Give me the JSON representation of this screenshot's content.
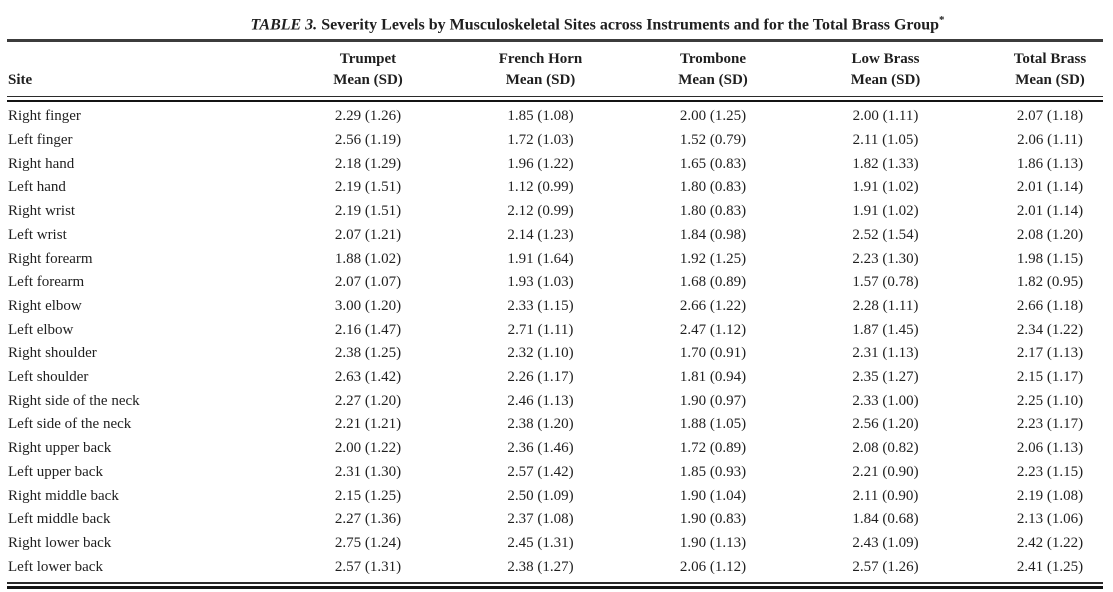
{
  "colors": {
    "text": "#1f1f1f",
    "rule_dark": "#141414",
    "rule_gray": "#3c3c3c",
    "background": "#ffffff"
  },
  "table": {
    "label": "TABLE 3.",
    "caption": " Severity Levels by Musculoskeletal Sites across Instruments and for the Total Brass Group",
    "footnote_marker": "*",
    "site_header": "Site",
    "columns": [
      {
        "instrument": "Trumpet",
        "measure": "Mean (SD)"
      },
      {
        "instrument": "French Horn",
        "measure": "Mean (SD)"
      },
      {
        "instrument": "Trombone",
        "measure": "Mean (SD)"
      },
      {
        "instrument": "Low Brass",
        "measure": "Mean (SD)"
      },
      {
        "instrument": "Total Brass",
        "measure": "Mean (SD)"
      }
    ],
    "rows": [
      {
        "site": "Right finger",
        "values": [
          "2.29 (1.26)",
          "1.85 (1.08)",
          "2.00 (1.25)",
          "2.00 (1.11)",
          "2.07 (1.18)"
        ]
      },
      {
        "site": "Left finger",
        "values": [
          "2.56 (1.19)",
          "1.72 (1.03)",
          "1.52 (0.79)",
          "2.11 (1.05)",
          "2.06 (1.11)"
        ]
      },
      {
        "site": "Right hand",
        "values": [
          "2.18 (1.29)",
          "1.96 (1.22)",
          "1.65 (0.83)",
          "1.82 (1.33)",
          "1.86 (1.13)"
        ]
      },
      {
        "site": "Left hand",
        "values": [
          "2.19 (1.51)",
          "1.12 (0.99)",
          "1.80 (0.83)",
          "1.91 (1.02)",
          "2.01 (1.14)"
        ]
      },
      {
        "site": "Right wrist",
        "values": [
          "2.19 (1.51)",
          "2.12 (0.99)",
          "1.80 (0.83)",
          "1.91 (1.02)",
          "2.01 (1.14)"
        ]
      },
      {
        "site": "Left wrist",
        "values": [
          "2.07 (1.21)",
          "2.14 (1.23)",
          "1.84 (0.98)",
          "2.52 (1.54)",
          "2.08 (1.20)"
        ]
      },
      {
        "site": "Right forearm",
        "values": [
          "1.88 (1.02)",
          "1.91 (1.64)",
          "1.92 (1.25)",
          "2.23 (1.30)",
          "1.98 (1.15)"
        ]
      },
      {
        "site": "Left forearm",
        "values": [
          "2.07 (1.07)",
          "1.93 (1.03)",
          "1.68 (0.89)",
          "1.57 (0.78)",
          "1.82 (0.95)"
        ]
      },
      {
        "site": "Right elbow",
        "values": [
          "3.00 (1.20)",
          "2.33 (1.15)",
          "2.66 (1.22)",
          "2.28 (1.11)",
          "2.66 (1.18)"
        ]
      },
      {
        "site": "Left elbow",
        "values": [
          "2.16 (1.47)",
          "2.71 (1.11)",
          "2.47 (1.12)",
          "1.87 (1.45)",
          "2.34 (1.22)"
        ]
      },
      {
        "site": "Right shoulder",
        "values": [
          "2.38 (1.25)",
          "2.32 (1.10)",
          "1.70 (0.91)",
          "2.31 (1.13)",
          "2.17 (1.13)"
        ]
      },
      {
        "site": "Left shoulder",
        "values": [
          "2.63 (1.42)",
          "2.26 (1.17)",
          "1.81 (0.94)",
          "2.35 (1.27)",
          "2.15 (1.17)"
        ]
      },
      {
        "site": "Right side of the neck",
        "values": [
          "2.27 (1.20)",
          "2.46 (1.13)",
          "1.90 (0.97)",
          "2.33 (1.00)",
          "2.25 (1.10)"
        ]
      },
      {
        "site": "Left side of the neck",
        "values": [
          "2.21 (1.21)",
          "2.38 (1.20)",
          "1.88 (1.05)",
          "2.56 (1.20)",
          "2.23 (1.17)"
        ]
      },
      {
        "site": "Right upper back",
        "values": [
          "2.00 (1.22)",
          "2.36 (1.46)",
          "1.72 (0.89)",
          "2.08 (0.82)",
          "2.06 (1.13)"
        ]
      },
      {
        "site": "Left upper back",
        "values": [
          "2.31 (1.30)",
          "2.57 (1.42)",
          "1.85 (0.93)",
          "2.21 (0.90)",
          "2.23 (1.15)"
        ]
      },
      {
        "site": "Right middle back",
        "values": [
          "2.15 (1.25)",
          "2.50 (1.09)",
          "1.90 (1.04)",
          "2.11 (0.90)",
          "2.19 (1.08)"
        ]
      },
      {
        "site": "Left middle back",
        "values": [
          "2.27 (1.36)",
          "2.37 (1.08)",
          "1.90 (0.83)",
          "1.84 (0.68)",
          "2.13 (1.06)"
        ]
      },
      {
        "site": "Right lower back",
        "values": [
          "2.75 (1.24)",
          "2.45 (1.31)",
          "1.90 (1.13)",
          "2.43 (1.09)",
          "2.42 (1.22)"
        ]
      },
      {
        "site": "Left lower back",
        "values": [
          "2.57 (1.31)",
          "2.38 (1.27)",
          "2.06 (1.12)",
          "2.57 (1.26)",
          "2.41 (1.25)"
        ]
      }
    ]
  }
}
